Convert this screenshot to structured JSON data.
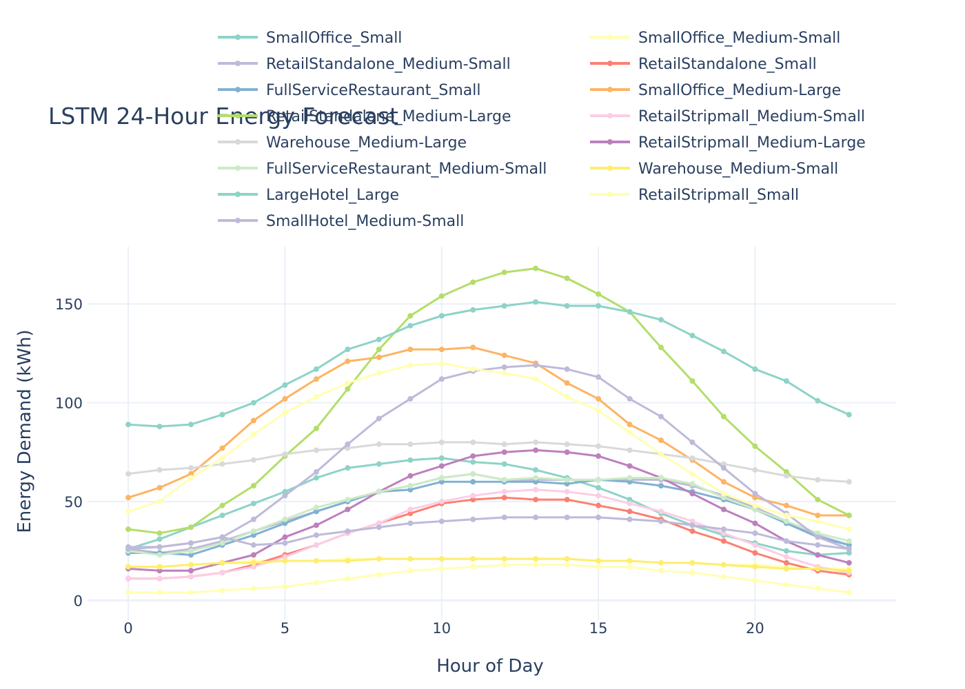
{
  "chart_data": {
    "type": "line",
    "title": "LSTM 24-Hour Energy Forecast",
    "xlabel": "Hour of Day",
    "ylabel": "Energy Demand (kWh)",
    "xlim": [
      -1.3,
      24.5
    ],
    "ylim": [
      -10,
      179
    ],
    "x_ticks": [
      0,
      5,
      10,
      15,
      20
    ],
    "y_ticks": [
      0,
      50,
      100,
      150
    ],
    "grid": true,
    "legend_position": "top",
    "x": [
      0,
      1,
      2,
      3,
      4,
      5,
      6,
      7,
      8,
      9,
      10,
      11,
      12,
      13,
      14,
      15,
      16,
      17,
      18,
      19,
      20,
      21,
      22,
      23
    ],
    "series": [
      {
        "name": "SmallOffice_Small",
        "color": "#8dd3c7",
        "values": [
          26,
          31,
          37,
          43,
          49,
          55,
          62,
          67,
          69,
          71,
          72,
          70,
          69,
          66,
          62,
          57,
          51,
          44,
          38,
          33,
          29,
          25,
          23,
          24
        ]
      },
      {
        "name": "SmallOffice_Medium-Small",
        "color": "#ffffb3",
        "values": [
          17,
          17,
          18,
          19,
          20,
          20,
          20,
          21,
          21,
          21,
          21,
          21,
          21,
          21,
          21,
          20,
          20,
          19,
          19,
          18,
          18,
          17,
          16,
          16
        ]
      },
      {
        "name": "RetailStandalone_Medium-Small",
        "color": "#bebada",
        "values": [
          26,
          24,
          26,
          30,
          35,
          40,
          45,
          50,
          55,
          58,
          62,
          64,
          61,
          61,
          61,
          61,
          61,
          61,
          58,
          53,
          47,
          40,
          33,
          28
        ]
      },
      {
        "name": "RetailStandalone_Small",
        "color": "#fb8072",
        "values": [
          11,
          11,
          12,
          14,
          18,
          23,
          28,
          34,
          39,
          44,
          49,
          51,
          52,
          51,
          51,
          48,
          45,
          41,
          35,
          30,
          24,
          19,
          15,
          13
        ]
      },
      {
        "name": "FullServiceRestaurant_Small",
        "color": "#80b1d3",
        "values": [
          24,
          24,
          23,
          28,
          33,
          39,
          45,
          50,
          55,
          56,
          60,
          60,
          60,
          60,
          59,
          61,
          60,
          58,
          55,
          51,
          46,
          39,
          32,
          28
        ]
      },
      {
        "name": "SmallOffice_Medium-Large",
        "color": "#fdb462",
        "values": [
          52,
          57,
          64,
          77,
          91,
          102,
          112,
          121,
          123,
          127,
          127,
          128,
          124,
          120,
          110,
          102,
          89,
          81,
          71,
          60,
          52,
          48,
          43,
          43
        ]
      },
      {
        "name": "RetailStandalone_Medium-Large",
        "color": "#b3de69",
        "values": [
          36,
          34,
          37,
          48,
          58,
          73,
          87,
          107,
          127,
          144,
          154,
          161,
          166,
          168,
          163,
          155,
          146,
          128,
          111,
          93,
          78,
          65,
          51,
          43
        ]
      },
      {
        "name": "RetailStripmall_Medium-Small",
        "color": "#fccde5",
        "values": [
          11,
          11,
          12,
          14,
          17,
          22,
          28,
          34,
          39,
          46,
          50,
          53,
          55,
          56,
          55,
          53,
          49,
          45,
          40,
          34,
          28,
          22,
          17,
          14
        ]
      },
      {
        "name": "Warehouse_Medium-Large",
        "color": "#d9d9d9",
        "values": [
          64,
          66,
          67,
          69,
          71,
          74,
          76,
          77,
          79,
          79,
          80,
          80,
          79,
          80,
          79,
          78,
          76,
          74,
          72,
          69,
          66,
          63,
          61,
          60
        ]
      },
      {
        "name": "RetailStripmall_Medium-Large",
        "color": "#bc80bd",
        "values": [
          16,
          15,
          15,
          19,
          23,
          32,
          38,
          46,
          55,
          63,
          68,
          73,
          75,
          76,
          75,
          73,
          68,
          62,
          54,
          46,
          39,
          30,
          23,
          19
        ]
      },
      {
        "name": "FullServiceRestaurant_Medium-Small",
        "color": "#ccebc5",
        "values": [
          25,
          23,
          25,
          29,
          35,
          41,
          47,
          51,
          55,
          58,
          62,
          64,
          61,
          62,
          61,
          61,
          62,
          62,
          59,
          52,
          46,
          40,
          34,
          30
        ]
      },
      {
        "name": "Warehouse_Medium-Small",
        "color": "#ffed6f",
        "values": [
          17,
          17,
          18,
          19,
          19,
          20,
          20,
          20,
          21,
          21,
          21,
          21,
          21,
          21,
          21,
          20,
          20,
          19,
          19,
          18,
          17,
          16,
          16,
          15
        ]
      },
      {
        "name": "LargeHotel_Large",
        "color": "#8dd3c7",
        "values": [
          89,
          88,
          89,
          94,
          100,
          109,
          117,
          127,
          132,
          139,
          144,
          147,
          149,
          151,
          149,
          149,
          146,
          142,
          134,
          126,
          117,
          111,
          101,
          94
        ]
      },
      {
        "name": "RetailStripmall_Small",
        "color": "#ffffb3",
        "values": [
          4,
          4,
          4,
          5,
          6,
          7,
          9,
          11,
          13,
          15,
          16,
          17,
          18,
          18,
          18,
          17,
          17,
          15,
          14,
          12,
          10,
          8,
          6,
          4
        ]
      },
      {
        "name": "SmallHotel_Medium-Small",
        "color": "#bebada",
        "values": [
          26,
          27,
          29,
          32,
          41,
          53,
          65,
          79,
          92,
          102,
          112,
          116,
          118,
          119,
          117,
          113,
          102,
          93,
          80,
          67,
          54,
          44,
          32,
          26
        ]
      },
      {
        "name": "",
        "color": "#ffffb3",
        "values": [
          45,
          50,
          62,
          72,
          84,
          95,
          103,
          110,
          115,
          119,
          120,
          117,
          115,
          112,
          103,
          96,
          85,
          74,
          64,
          54,
          48,
          43,
          40,
          36
        ]
      },
      {
        "name": "",
        "color": "#bebada",
        "values": [
          27,
          27,
          29,
          32,
          28,
          29,
          33,
          35,
          37,
          39,
          40,
          41,
          42,
          42,
          42,
          42,
          41,
          40,
          38,
          36,
          34,
          30,
          28,
          26
        ]
      }
    ]
  }
}
